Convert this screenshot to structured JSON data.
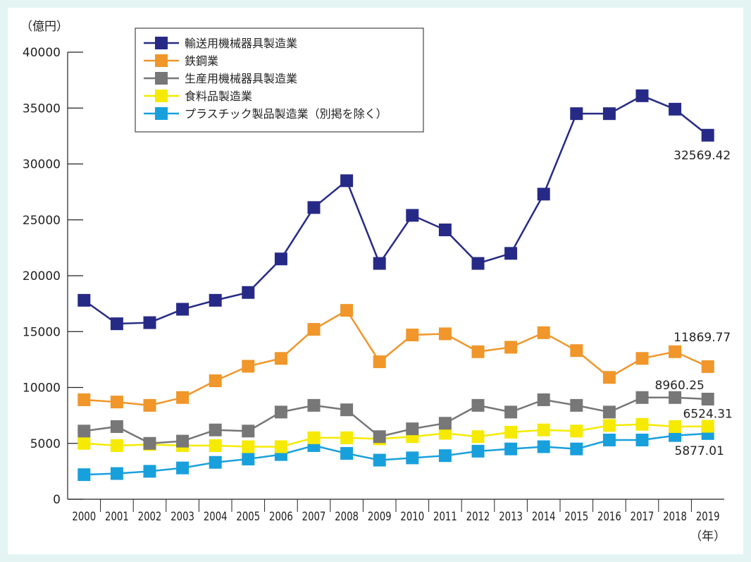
{
  "chart_data": {
    "type": "line",
    "title": "",
    "ylabel": "（億円）",
    "xlabel": "（年）",
    "ylim": [
      0,
      40000
    ],
    "yticks": [
      0,
      5000,
      10000,
      15000,
      20000,
      25000,
      30000,
      35000,
      40000
    ],
    "categories": [
      "2000",
      "2001",
      "2002",
      "2003",
      "2004",
      "2005",
      "2006",
      "2007",
      "2008",
      "2009",
      "2010",
      "2011",
      "2012",
      "2013",
      "2014",
      "2015",
      "2016",
      "2017",
      "2018",
      "2019"
    ],
    "series": [
      {
        "name": "輸送用機械器具製造業",
        "color": "#262a86",
        "values": [
          17800,
          15700,
          15800,
          17000,
          17800,
          18500,
          21500,
          26100,
          28500,
          21100,
          25400,
          24100,
          21100,
          22000,
          27300,
          34500,
          34500,
          36100,
          34900,
          32569.42
        ],
        "end_label": "32569.42"
      },
      {
        "name": "鉄鋼業",
        "color": "#f0962a",
        "values": [
          8900,
          8700,
          8400,
          9100,
          10600,
          11900,
          12600,
          15200,
          16900,
          12300,
          14700,
          14800,
          13200,
          13600,
          14900,
          13300,
          10900,
          12600,
          13200,
          11869.77
        ],
        "end_label": "11869.77"
      },
      {
        "name": "生産用機械器具製造業",
        "color": "#777777",
        "values": [
          6100,
          6500,
          5000,
          5200,
          6200,
          6100,
          7800,
          8400,
          8000,
          5600,
          6300,
          6800,
          8400,
          7800,
          8900,
          8400,
          7800,
          9100,
          9100,
          8960.25
        ],
        "end_label": "8960.25"
      },
      {
        "name": "食料品製造業",
        "color": "#f5ea00",
        "values": [
          5000,
          4800,
          4900,
          4800,
          4800,
          4700,
          4700,
          5500,
          5500,
          5400,
          5600,
          5900,
          5600,
          6000,
          6200,
          6100,
          6600,
          6700,
          6500,
          6524.31
        ],
        "end_label": "6524.31"
      },
      {
        "name": "プラスチック製品製造業（別掲を除く）",
        "color": "#18a0dc",
        "values": [
          2200,
          2300,
          2500,
          2800,
          3300,
          3600,
          4000,
          4800,
          4100,
          3500,
          3700,
          3900,
          4300,
          4500,
          4700,
          4500,
          5300,
          5300,
          5700,
          5877.01
        ],
        "end_label": "5877.01"
      }
    ],
    "legend_position": "top-left",
    "grid": false
  }
}
